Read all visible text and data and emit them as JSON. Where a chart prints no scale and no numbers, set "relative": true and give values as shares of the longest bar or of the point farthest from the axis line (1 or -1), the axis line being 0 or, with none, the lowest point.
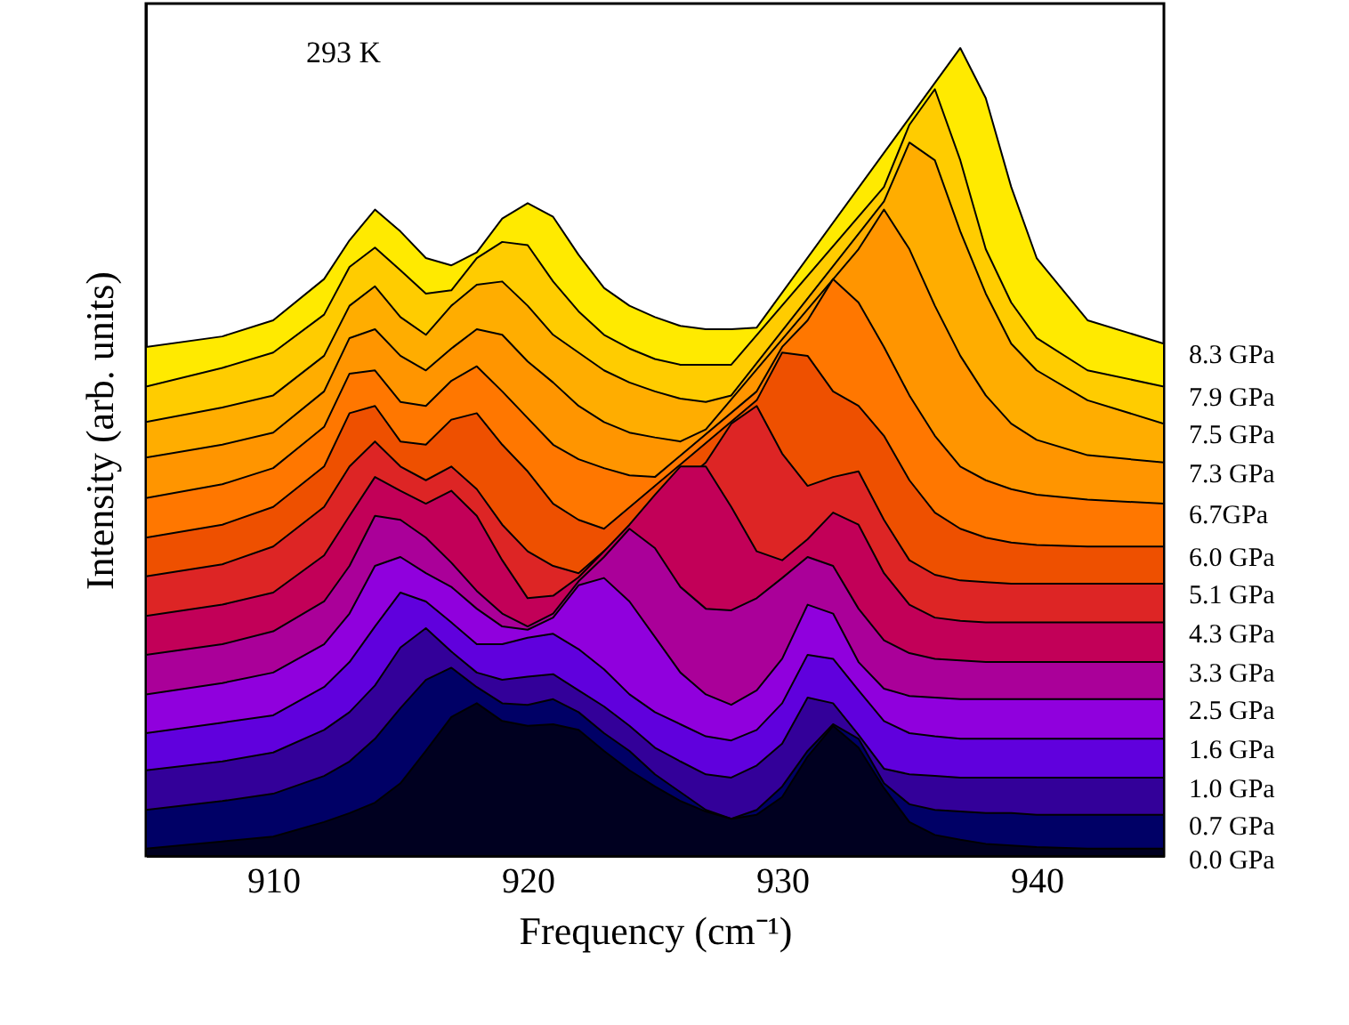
{
  "chart_data": {
    "type": "area",
    "relative": true,
    "xlabel": "Frequency (cm⁻¹)",
    "ylabel": "Intensity (arb. units)",
    "annotations": [
      "293 K"
    ],
    "xlim": [
      905,
      945
    ],
    "xticks": [
      910,
      920,
      930,
      940
    ],
    "x": [
      905,
      908,
      910,
      912,
      913,
      914,
      915,
      916,
      917,
      918,
      919,
      920,
      921,
      922,
      923,
      924,
      925,
      926,
      927,
      928,
      929,
      930,
      931,
      932,
      933,
      934,
      935,
      936,
      937,
      938,
      939,
      940,
      942,
      945
    ],
    "series": [
      {
        "name": "8.3 GPa",
        "color": "#ffea00",
        "values": [
          0.63,
          0.643,
          0.663,
          0.714,
          0.762,
          0.8,
          0.773,
          0.74,
          0.731,
          0.747,
          0.789,
          0.808,
          0.791,
          0.744,
          0.703,
          0.681,
          0.667,
          0.656,
          0.652,
          0.652,
          0.654,
          null,
          null,
          null,
          null,
          null,
          null,
          null,
          1,
          0.938,
          0.828,
          0.74,
          0.663,
          0.634
        ]
      },
      {
        "name": "7.9 GPa",
        "color": "#ffcc00",
        "values": [
          0.581,
          0.604,
          0.623,
          0.67,
          0.729,
          0.753,
          0.725,
          0.696,
          0.7,
          0.74,
          0.76,
          0.756,
          0.711,
          0.674,
          0.645,
          0.628,
          0.615,
          0.608,
          0.608,
          0.608,
          null,
          null,
          null,
          null,
          null,
          0.828,
          0.905,
          0.949,
          0.861,
          0.751,
          0.685,
          0.641,
          0.601,
          0.581
        ]
      },
      {
        "name": "7.5 GPa",
        "color": "#ffad00",
        "values": [
          0.537,
          0.555,
          0.57,
          0.619,
          0.681,
          0.705,
          0.667,
          0.645,
          0.681,
          0.707,
          0.711,
          0.681,
          0.645,
          0.623,
          0.601,
          0.586,
          0.575,
          0.566,
          0.562,
          0.57,
          null,
          null,
          null,
          null,
          null,
          0.81,
          0.883,
          0.861,
          0.773,
          0.696,
          0.634,
          0.601,
          0.564,
          0.535
        ]
      },
      {
        "name": "7.3 GPa",
        "color": "#ff9500",
        "values": [
          0.493,
          0.509,
          0.524,
          0.575,
          0.641,
          0.652,
          0.619,
          0.601,
          0.628,
          0.652,
          0.645,
          0.612,
          0.586,
          0.557,
          0.537,
          0.524,
          0.518,
          0.513,
          0.528,
          null,
          null,
          null,
          null,
          null,
          0.751,
          0.8,
          0.751,
          0.681,
          0.619,
          0.57,
          0.535,
          0.515,
          0.496,
          0.487
        ]
      },
      {
        "name": "6.7GPa",
        "color": "#ff7700",
        "values": [
          0.443,
          0.46,
          0.48,
          0.531,
          0.597,
          0.601,
          0.562,
          0.557,
          0.588,
          0.606,
          0.575,
          0.542,
          0.509,
          0.491,
          0.48,
          0.471,
          0.469,
          null,
          null,
          null,
          0.575,
          0.63,
          0.663,
          0.714,
          0.685,
          0.63,
          0.57,
          0.52,
          0.482,
          0.465,
          0.454,
          0.447,
          0.441,
          0.436
        ]
      },
      {
        "name": "6.0 GPa",
        "color": "#ee5000",
        "values": [
          0.394,
          0.41,
          0.432,
          0.482,
          0.548,
          0.557,
          0.513,
          0.509,
          0.54,
          0.548,
          0.509,
          0.476,
          0.436,
          0.416,
          0.405,
          null,
          null,
          null,
          null,
          null,
          0.564,
          0.623,
          0.619,
          0.575,
          0.557,
          0.52,
          0.465,
          0.425,
          0.405,
          0.394,
          0.388,
          0.385,
          0.383,
          0.383
        ]
      },
      {
        "name": "5.1 GPa",
        "color": "#dd2525",
        "values": [
          0.346,
          0.361,
          0.383,
          0.432,
          0.482,
          0.513,
          0.482,
          0.465,
          0.482,
          0.454,
          0.41,
          0.377,
          0.359,
          0.35,
          null,
          null,
          null,
          null,
          0.487,
          0.535,
          0.557,
          0.498,
          0.458,
          0.469,
          0.476,
          0.416,
          0.366,
          0.348,
          0.341,
          0.339,
          0.337,
          0.337,
          0.337,
          0.337
        ]
      },
      {
        "name": "4.3 GPa",
        "color": "#c20058",
        "values": [
          0.297,
          0.311,
          0.326,
          0.372,
          0.421,
          0.469,
          0.452,
          0.436,
          0.452,
          0.421,
          0.366,
          0.319,
          0.322,
          0.345,
          0.377,
          0.41,
          0.447,
          0.482,
          0.482,
          0.432,
          0.377,
          0.366,
          0.392,
          0.425,
          0.41,
          0.35,
          0.311,
          0.295,
          0.291,
          0.289,
          0.289,
          0.289,
          0.289,
          0.289
        ]
      },
      {
        "name": "3.3 GPa",
        "color": "#aa0099",
        "values": [
          0.249,
          0.262,
          0.278,
          0.315,
          0.359,
          0.421,
          0.416,
          0.394,
          0.363,
          0.328,
          0.3,
          0.284,
          0.3,
          0.34,
          0.37,
          0.405,
          0.381,
          0.333,
          0.306,
          0.304,
          0.319,
          0.344,
          0.37,
          0.359,
          0.306,
          0.267,
          0.251,
          0.244,
          0.242,
          0.24,
          0.24,
          0.24,
          0.24,
          0.24
        ]
      },
      {
        "name": "2.5 GPa",
        "color": "#9000dd",
        "values": [
          0.2,
          0.214,
          0.227,
          0.262,
          0.3,
          0.359,
          0.37,
          0.35,
          0.333,
          0.306,
          0.284,
          0.28,
          0.295,
          0.335,
          0.344,
          0.315,
          0.271,
          0.227,
          0.2,
          0.187,
          0.205,
          0.244,
          0.311,
          0.3,
          0.24,
          0.207,
          0.198,
          0.196,
          0.194,
          0.194,
          0.194,
          0.194,
          0.194,
          0.194
        ]
      },
      {
        "name": "1.6 GPa",
        "color": "#6000dd",
        "values": [
          0.152,
          0.165,
          0.174,
          0.209,
          0.24,
          0.284,
          0.326,
          0.315,
          0.289,
          0.262,
          0.262,
          0.27,
          0.275,
          0.256,
          0.231,
          0.2,
          0.178,
          0.163,
          0.148,
          0.143,
          0.156,
          0.189,
          0.249,
          0.244,
          0.205,
          0.167,
          0.152,
          0.148,
          0.145,
          0.145,
          0.145,
          0.145,
          0.145,
          0.145
        ]
      },
      {
        "name": "1.0 GPa",
        "color": "#330099",
        "values": [
          0.106,
          0.117,
          0.128,
          0.156,
          0.178,
          0.211,
          0.258,
          0.282,
          0.253,
          0.227,
          0.218,
          0.222,
          0.225,
          0.205,
          0.185,
          0.161,
          0.134,
          0.117,
          0.101,
          0.097,
          0.112,
          0.139,
          0.196,
          0.189,
          0.15,
          0.108,
          0.101,
          0.099,
          0.097,
          0.097,
          0.097,
          0.097,
          0.097,
          0.097
        ]
      },
      {
        "name": "0.7 GPa",
        "color": "#000066",
        "values": [
          0.057,
          0.068,
          0.077,
          0.099,
          0.117,
          0.145,
          0.183,
          0.218,
          0.233,
          0.209,
          0.189,
          0.187,
          0.194,
          0.178,
          0.152,
          0.13,
          0.101,
          0.079,
          0.057,
          0.046,
          0.057,
          0.086,
          0.13,
          0.163,
          0.145,
          0.09,
          0.064,
          0.057,
          0.055,
          0.053,
          0.053,
          0.051,
          0.051,
          0.051
        ]
      },
      {
        "name": "0.0 GPa",
        "color": "#000020",
        "values": [
          0.009,
          0.018,
          0.024,
          0.042,
          0.053,
          0.066,
          0.09,
          0.13,
          0.172,
          0.189,
          0.167,
          0.161,
          0.163,
          0.156,
          0.13,
          0.106,
          0.086,
          0.068,
          0.055,
          0.046,
          0.051,
          0.073,
          0.123,
          0.161,
          0.134,
          0.084,
          0.042,
          0.026,
          0.02,
          0.015,
          0.013,
          0.011,
          0.009,
          0.009
        ]
      }
    ]
  }
}
